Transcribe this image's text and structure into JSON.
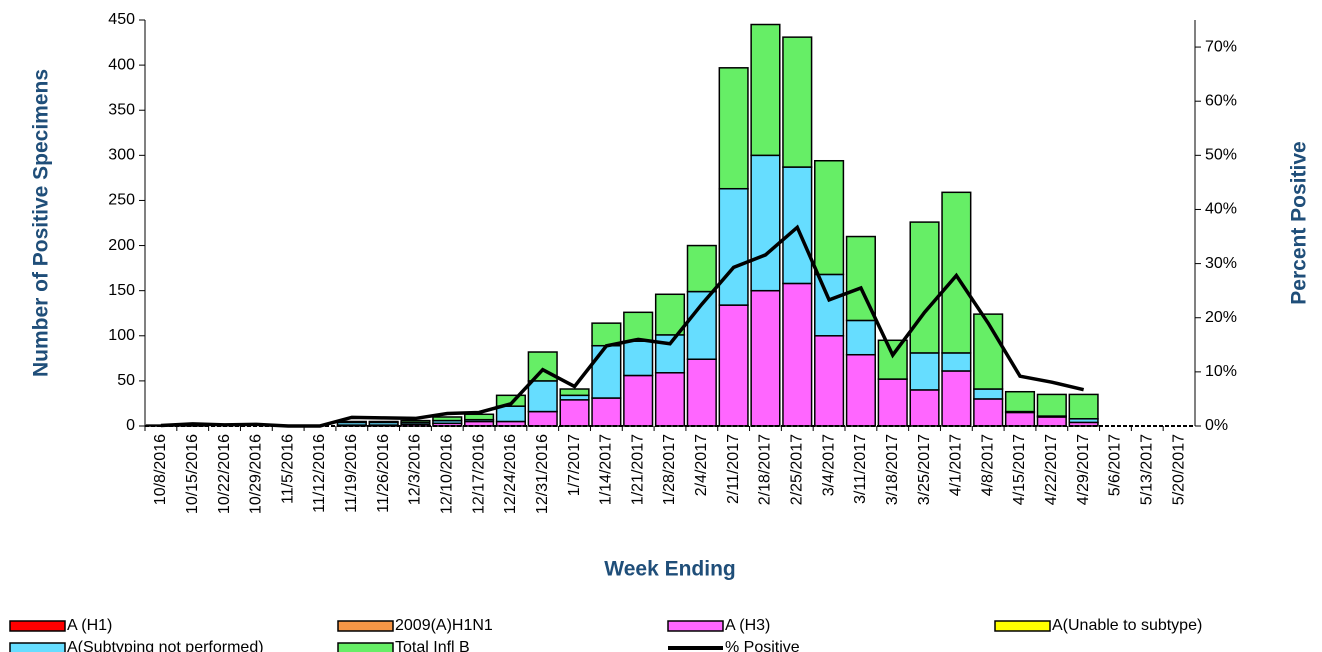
{
  "chart_data": {
    "type": "bar",
    "x_label": "Week Ending",
    "y_label": "Number of  Positive Specimens",
    "y2_label": "Percent Positive",
    "categories": [
      "10/8/2016",
      "10/15/2016",
      "10/22/2016",
      "10/29/2016",
      "11/5/2016",
      "11/12/2016",
      "11/19/2016",
      "11/26/2016",
      "12/3/2016",
      "12/10/2016",
      "12/17/2016",
      "12/24/2016",
      "12/31/2016",
      "1/7/2017",
      "1/14/2017",
      "1/21/2017",
      "1/28/2017",
      "2/4/2017",
      "2/11/2017",
      "2/18/2017",
      "2/25/2017",
      "3/4/2017",
      "3/11/2017",
      "3/18/2017",
      "3/25/2017",
      "4/1/2017",
      "4/8/2017",
      "4/15/2017",
      "4/22/2017",
      "4/29/2017",
      "5/6/2017",
      "5/13/2017",
      "5/20/2017"
    ],
    "ylim": [
      0,
      450
    ],
    "yticks": [
      0,
      50,
      100,
      150,
      200,
      250,
      300,
      350,
      400,
      450
    ],
    "y2lim": [
      0,
      75
    ],
    "y2ticks": [
      {
        "value": 0,
        "label": "0%"
      },
      {
        "value": 10,
        "label": "10%"
      },
      {
        "value": 20,
        "label": "20%"
      },
      {
        "value": 30,
        "label": "30%"
      },
      {
        "value": 40,
        "label": "40%"
      },
      {
        "value": 50,
        "label": "50%"
      },
      {
        "value": 60,
        "label": "60%"
      },
      {
        "value": 70,
        "label": "70%"
      }
    ],
    "series": [
      {
        "name": "A (H1)",
        "color": "#ff0000",
        "values": [
          0,
          0,
          0,
          0,
          0,
          0,
          0,
          0,
          0,
          0,
          0,
          0,
          0,
          0,
          0,
          0,
          0,
          0,
          0,
          0,
          0,
          0,
          0,
          0,
          0,
          0,
          0,
          0,
          0,
          0,
          0,
          0,
          0
        ]
      },
      {
        "name": "2009(A)H1N1",
        "color": "#f79646",
        "values": [
          0,
          0,
          0,
          0,
          0,
          0,
          0,
          0,
          0,
          0,
          0,
          0,
          0,
          0,
          0,
          0,
          0,
          0,
          0,
          0,
          0,
          0,
          0,
          0,
          0,
          0,
          0,
          0,
          0,
          0,
          0,
          0,
          0
        ]
      },
      {
        "name": "A (H3)",
        "color": "#ff66ff",
        "values": [
          0,
          0,
          0,
          0,
          0,
          0,
          1,
          1,
          2,
          3,
          5,
          5,
          16,
          29,
          31,
          56,
          59,
          74,
          134,
          150,
          158,
          100,
          79,
          52,
          40,
          61,
          30,
          15,
          10,
          4,
          0,
          0,
          0
        ]
      },
      {
        "name": "A(Unable to subtype)",
        "color": "#ffff00",
        "values": [
          0,
          0,
          0,
          0,
          0,
          0,
          0,
          0,
          0,
          0,
          0,
          0,
          0,
          0,
          0,
          0,
          0,
          0,
          0,
          0,
          0,
          0,
          0,
          0,
          0,
          0,
          0,
          0,
          0,
          0,
          0,
          0,
          0
        ]
      },
      {
        "name": "A(Subtyping not performed)",
        "color": "#66ddff",
        "values": [
          0,
          0,
          0,
          0,
          0,
          0,
          3,
          3,
          2,
          3,
          2,
          17,
          34,
          5,
          58,
          38,
          42,
          75,
          129,
          150,
          129,
          68,
          38,
          0,
          41,
          20,
          11,
          1,
          1,
          4,
          0,
          0,
          0
        ]
      },
      {
        "name": "Total Infl B",
        "color": "#66ee66",
        "values": [
          1,
          1,
          0,
          0,
          0,
          0,
          1,
          1,
          2,
          4,
          6,
          12,
          32,
          7,
          25,
          32,
          45,
          51,
          134,
          145,
          144,
          126,
          93,
          43,
          145,
          178,
          83,
          22,
          24,
          27,
          0,
          0,
          0
        ]
      },
      {
        "name": "% Positive",
        "color": "#000000",
        "type": "line",
        "axis": "y2",
        "values": [
          0.1,
          0.4,
          0.2,
          0.3,
          0,
          0,
          1.6,
          1.5,
          1.4,
          2.3,
          2.5,
          4.1,
          10.4,
          7.3,
          14.8,
          16.0,
          15.2,
          22.5,
          29.3,
          31.6,
          36.7,
          23.3,
          25.5,
          13.1,
          21.0,
          27.8,
          19.0,
          9.2,
          8.1,
          6.7,
          null,
          null,
          null
        ]
      }
    ]
  }
}
